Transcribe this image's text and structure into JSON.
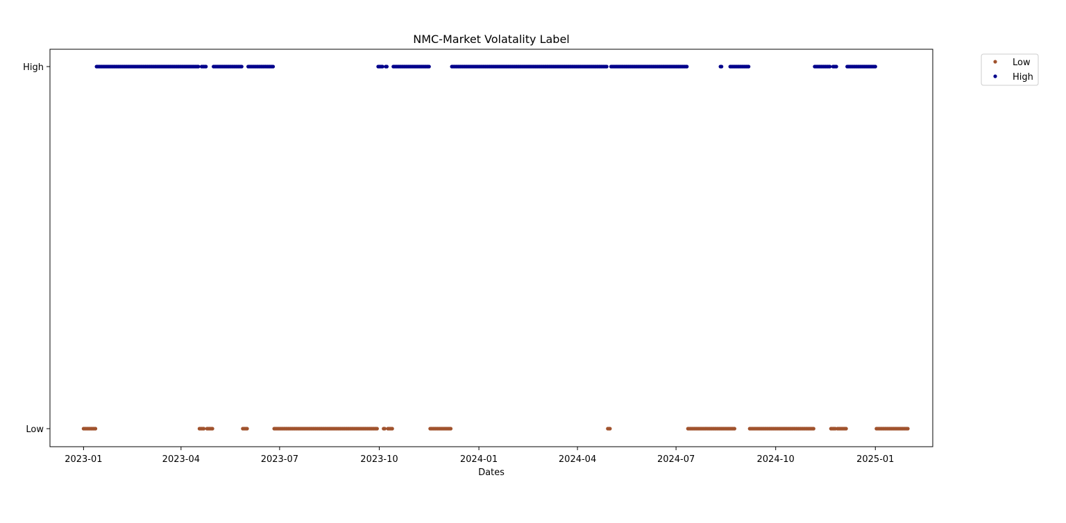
{
  "chart_data": {
    "type": "scatter",
    "title": "NMC-Market Volatality Label",
    "xlabel": "Dates",
    "ylabel": "",
    "x_type": "date",
    "xlim": [
      "2022-12-01",
      "2025-02-23"
    ],
    "x_ticks": [
      "2023-01",
      "2023-04",
      "2023-07",
      "2023-10",
      "2024-01",
      "2024-04",
      "2024-07",
      "2024-10",
      "2025-01"
    ],
    "y_categories": [
      "Low",
      "High"
    ],
    "grid": false,
    "legend_position": "outside-top-right",
    "series": [
      {
        "name": "Low",
        "color": "#a0522d",
        "y": "Low",
        "ranges": [
          [
            "2023-01-01",
            "2023-01-12"
          ],
          [
            "2023-04-18",
            "2023-04-22"
          ],
          [
            "2023-04-25",
            "2023-04-30"
          ],
          [
            "2023-05-28",
            "2023-06-01"
          ],
          [
            "2023-06-26",
            "2023-09-29"
          ],
          [
            "2023-10-05",
            "2023-10-06"
          ],
          [
            "2023-10-09",
            "2023-10-13"
          ],
          [
            "2023-11-17",
            "2023-12-06"
          ],
          [
            "2024-04-29",
            "2024-05-01"
          ],
          [
            "2024-07-12",
            "2024-08-24"
          ],
          [
            "2024-09-07",
            "2024-11-05"
          ],
          [
            "2024-11-21",
            "2024-11-25"
          ],
          [
            "2024-11-27",
            "2024-12-05"
          ],
          [
            "2025-01-02",
            "2025-01-31"
          ]
        ]
      },
      {
        "name": "High",
        "color": "#00008b",
        "y": "High",
        "ranges": [
          [
            "2023-01-13",
            "2023-04-17"
          ],
          [
            "2023-04-20",
            "2023-04-24"
          ],
          [
            "2023-05-01",
            "2023-05-27"
          ],
          [
            "2023-06-02",
            "2023-06-25"
          ],
          [
            "2023-09-30",
            "2023-10-04"
          ],
          [
            "2023-10-07",
            "2023-10-08"
          ],
          [
            "2023-10-14",
            "2023-11-16"
          ],
          [
            "2023-12-07",
            "2024-04-28"
          ],
          [
            "2024-05-02",
            "2024-07-11"
          ],
          [
            "2024-08-11",
            "2024-08-12"
          ],
          [
            "2024-08-20",
            "2024-09-06"
          ],
          [
            "2024-11-06",
            "2024-11-20"
          ],
          [
            "2024-11-23",
            "2024-11-26"
          ],
          [
            "2024-12-06",
            "2025-01-01"
          ]
        ]
      }
    ]
  }
}
